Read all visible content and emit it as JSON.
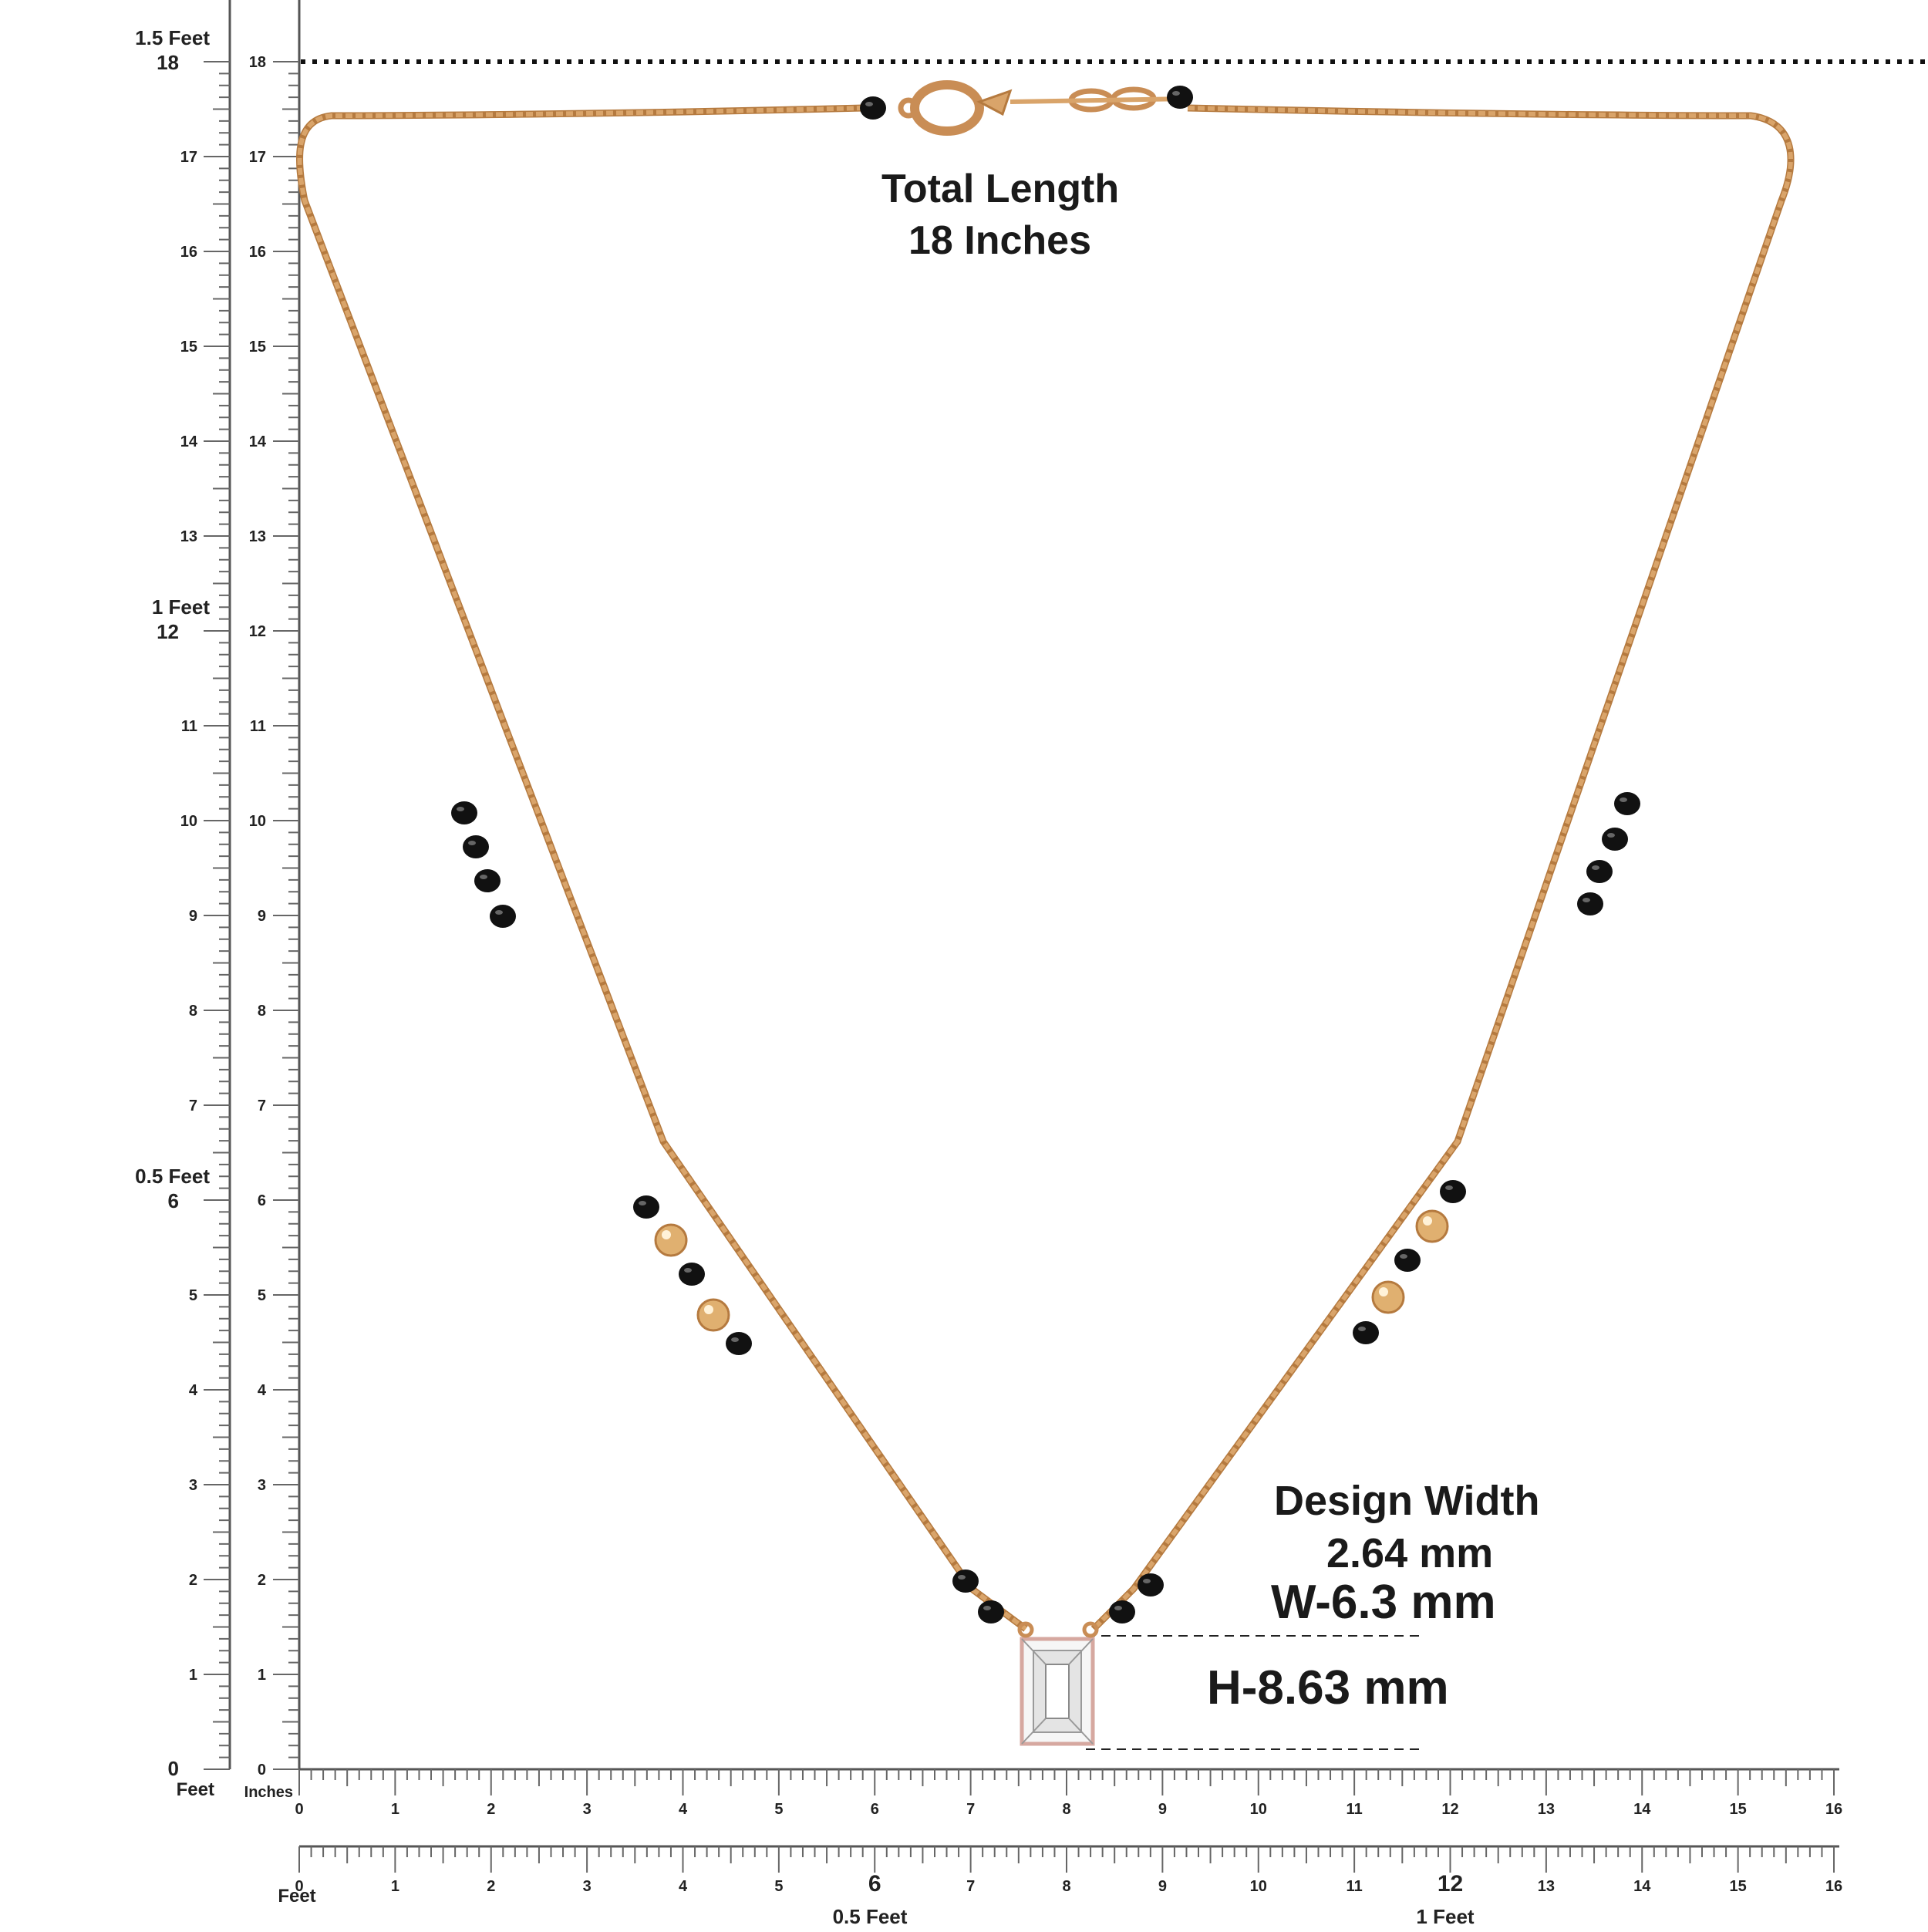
{
  "rulers": {
    "vertical_feet": {
      "labels": [
        "1.5 Feet",
        "1 Feet",
        "0.5 Feet"
      ],
      "unit": "Feet"
    },
    "vertical_inches": {
      "unit": "Inches",
      "max": 18
    },
    "horizontal_inches": {
      "max": 16
    },
    "horizontal_feet": {
      "unit": "Feet",
      "labels": [
        "0.5 Feet",
        "1 Feet"
      ]
    }
  },
  "annotations": {
    "total_length_line1": "Total Length",
    "total_length_line2": "18 Inches",
    "design_width_line1": "Design Width",
    "design_width_line2": "2.64 mm",
    "pendant_width": "W-6.3 mm",
    "pendant_height": "H-8.63 mm"
  },
  "product": {
    "chain_color": "#d9a46a",
    "bead_color": "#111111",
    "gold_bead_color": "#e0b070",
    "stone_icon": "emerald-cut-diamond-icon",
    "clasp_icon": "lobster-clasp-icon"
  }
}
